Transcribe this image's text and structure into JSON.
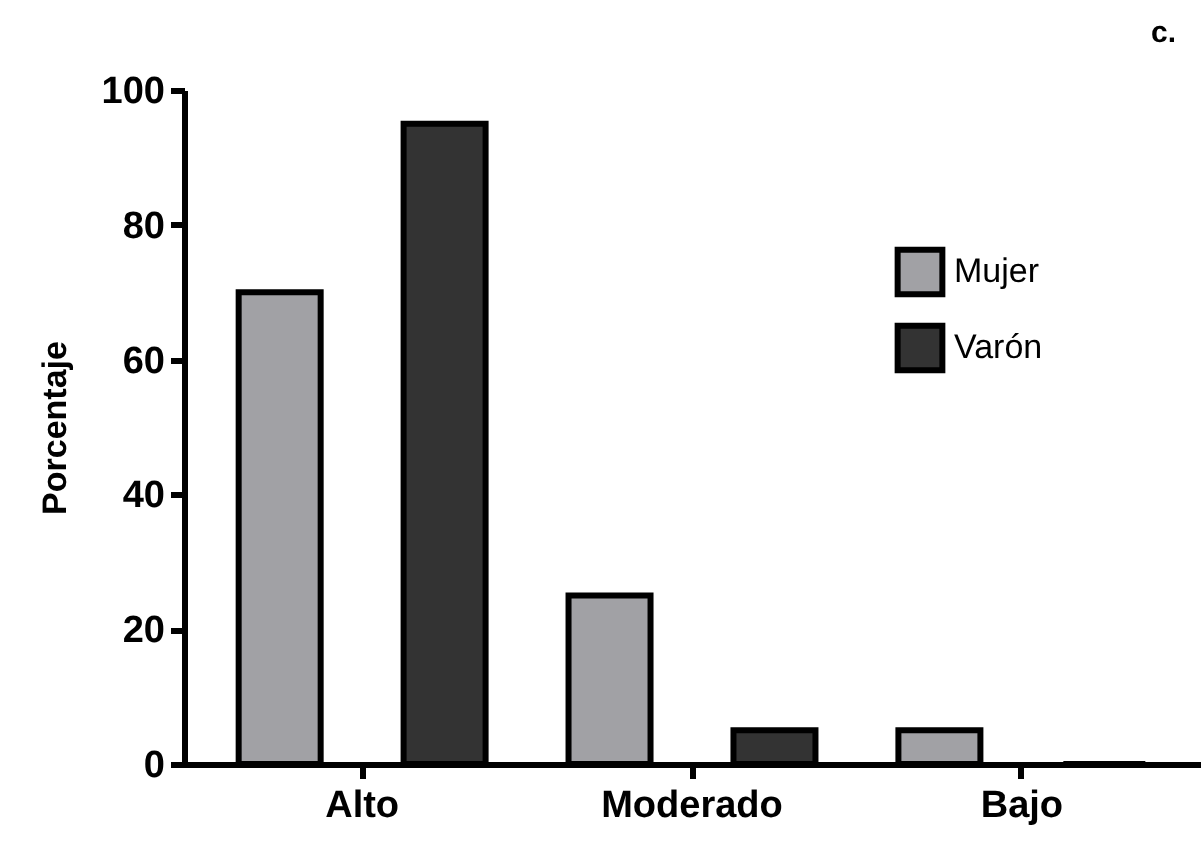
{
  "chart_data": {
    "type": "bar",
    "title": "c.",
    "ylabel": "Porcentaje",
    "categories": [
      "Alto",
      "Moderado",
      "Bajo"
    ],
    "series": [
      {
        "name": "Mujer",
        "color": "#a1a1a5",
        "values": [
          70,
          25,
          5
        ]
      },
      {
        "name": "Varón",
        "color": "#333333",
        "values": [
          95,
          5,
          0
        ]
      }
    ],
    "ylim": [
      0,
      100
    ],
    "yticks": [
      0,
      20,
      40,
      60,
      80,
      100
    ],
    "grid": false,
    "legend": "top right"
  }
}
